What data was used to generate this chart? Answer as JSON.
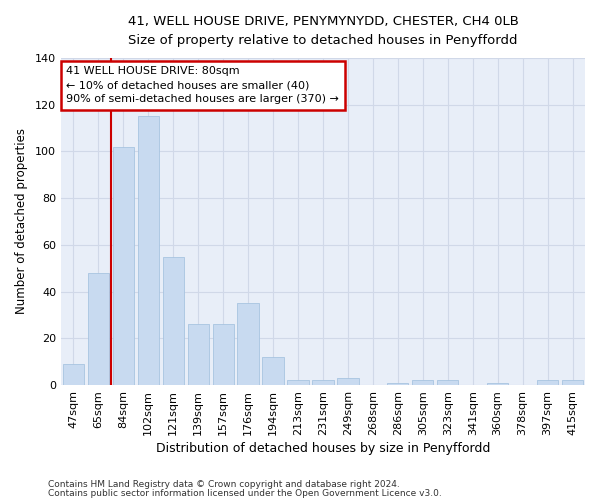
{
  "title": "41, WELL HOUSE DRIVE, PENYMYNYDD, CHESTER, CH4 0LB",
  "subtitle": "Size of property relative to detached houses in Penyffordd",
  "xlabel": "Distribution of detached houses by size in Penyffordd",
  "ylabel": "Number of detached properties",
  "categories": [
    "47sqm",
    "65sqm",
    "84sqm",
    "102sqm",
    "121sqm",
    "139sqm",
    "157sqm",
    "176sqm",
    "194sqm",
    "213sqm",
    "231sqm",
    "249sqm",
    "268sqm",
    "286sqm",
    "305sqm",
    "323sqm",
    "341sqm",
    "360sqm",
    "378sqm",
    "397sqm",
    "415sqm"
  ],
  "values": [
    9,
    48,
    102,
    115,
    55,
    26,
    26,
    35,
    12,
    2,
    2,
    3,
    0,
    1,
    2,
    2,
    0,
    1,
    0,
    2,
    2
  ],
  "bar_color": "#c8daf0",
  "bar_edge_color": "#a8c4e0",
  "vline_color": "#cc0000",
  "vline_x_index": 2,
  "annotation_line1": "41 WELL HOUSE DRIVE: 80sqm",
  "annotation_line2": "← 10% of detached houses are smaller (40)",
  "annotation_line3": "90% of semi-detached houses are larger (370) →",
  "annotation_box_edge_color": "#cc0000",
  "annotation_box_bg": "#ffffff",
  "ylim": [
    0,
    140
  ],
  "yticks": [
    0,
    20,
    40,
    60,
    80,
    100,
    120,
    140
  ],
  "grid_color": "#d0d8e8",
  "bg_color": "#e8eef8",
  "footer1": "Contains HM Land Registry data © Crown copyright and database right 2024.",
  "footer2": "Contains public sector information licensed under the Open Government Licence v3.0."
}
